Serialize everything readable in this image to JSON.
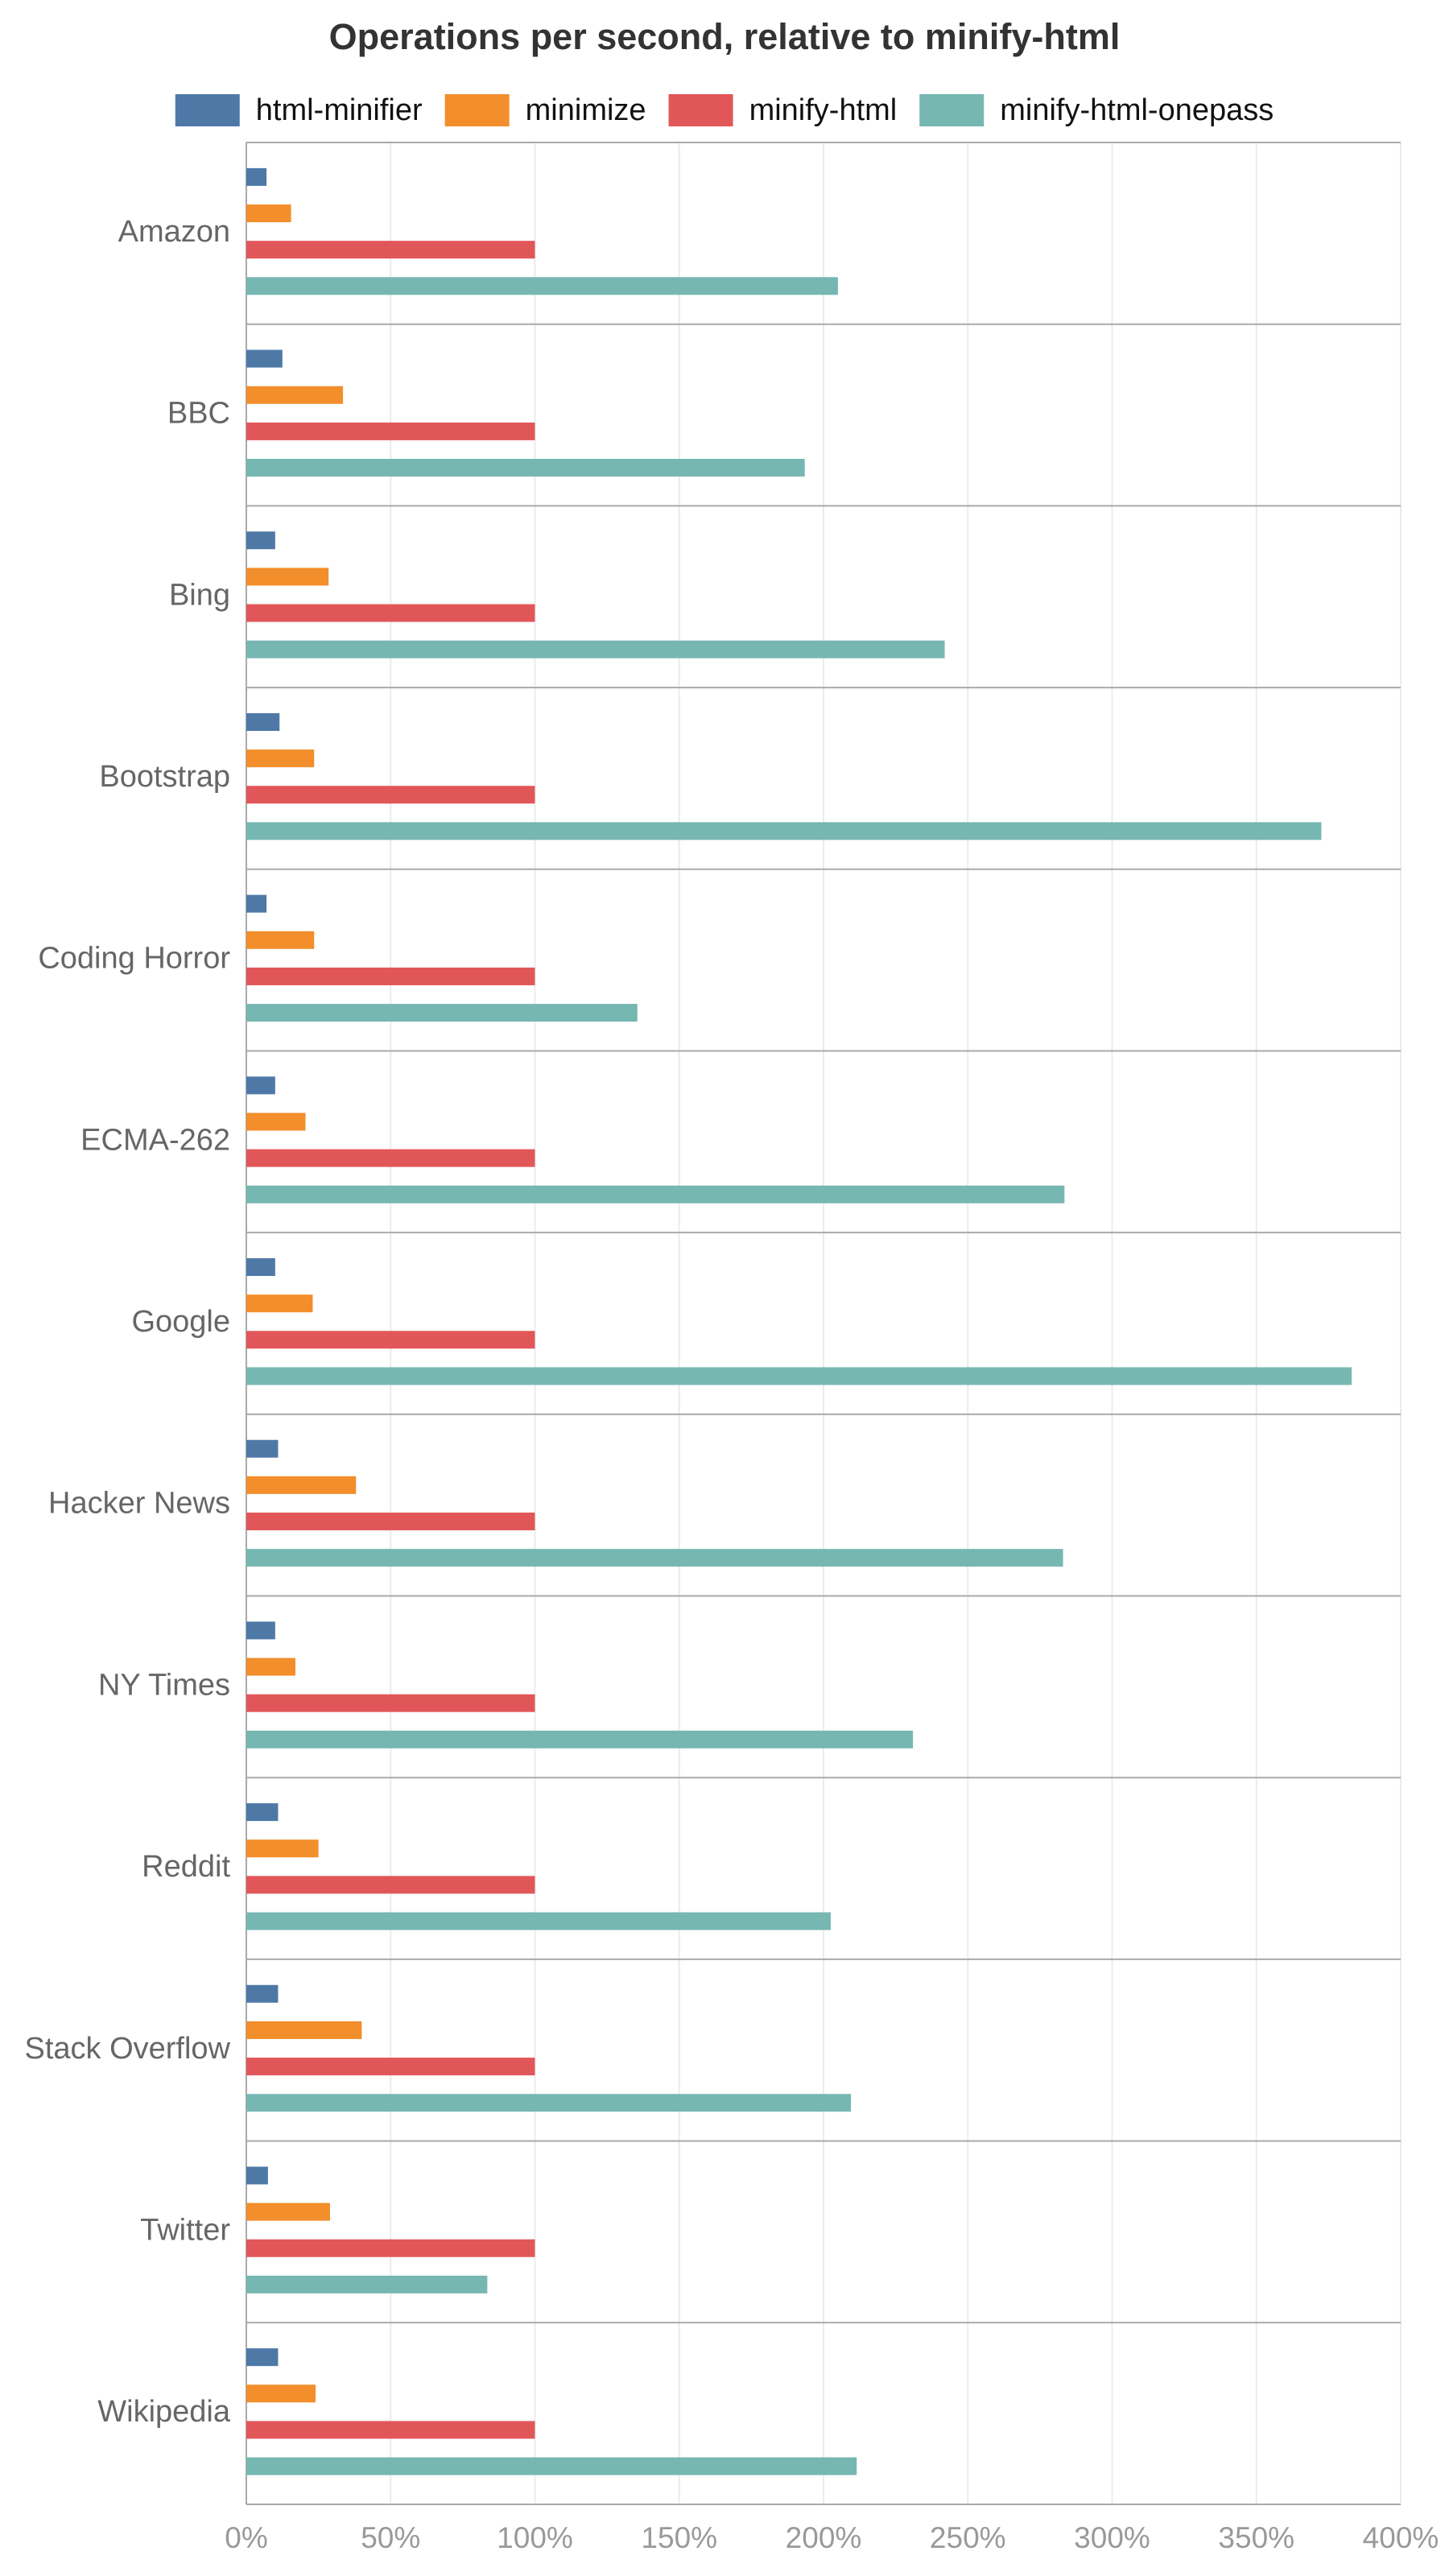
{
  "chart_data": {
    "type": "bar",
    "orientation": "horizontal",
    "title": "Operations per second, relative to minify-html",
    "categories": [
      "Amazon",
      "BBC",
      "Bing",
      "Bootstrap",
      "Coding Horror",
      "ECMA-262",
      "Google",
      "Hacker News",
      "NY Times",
      "Reddit",
      "Stack Overflow",
      "Twitter",
      "Wikipedia"
    ],
    "series": [
      {
        "name": "html-minifier",
        "color": "#4e79a7",
        "values": [
          7,
          12.5,
          10,
          11.5,
          7,
          10,
          10,
          11,
          10,
          11,
          11,
          7.5,
          11
        ]
      },
      {
        "name": "minimize",
        "color": "#f28e2b",
        "values": [
          15.5,
          33.5,
          28.5,
          23.5,
          23.5,
          20.5,
          23,
          38,
          17,
          25,
          40,
          29,
          24
        ]
      },
      {
        "name": "minify-html",
        "color": "#e15759",
        "values": [
          100,
          100,
          100,
          100,
          100,
          100,
          100,
          100,
          100,
          100,
          100,
          100,
          100
        ]
      },
      {
        "name": "minify-html-onepass",
        "color": "#76b7b2",
        "values": [
          205,
          193.5,
          242,
          372.5,
          135.5,
          283.5,
          383,
          283,
          231,
          202.5,
          209.5,
          83.5,
          211.5
        ]
      }
    ],
    "xlim": [
      0,
      400
    ],
    "xticks": [
      {
        "value": 0,
        "label": "0%"
      },
      {
        "value": 50,
        "label": "50%"
      },
      {
        "value": 100,
        "label": "100%"
      },
      {
        "value": 150,
        "label": "150%"
      },
      {
        "value": 200,
        "label": "200%"
      },
      {
        "value": 250,
        "label": "250%"
      },
      {
        "value": 300,
        "label": "300%"
      },
      {
        "value": 350,
        "label": "350%"
      },
      {
        "value": 400,
        "label": "400%"
      }
    ],
    "grid": true,
    "legend": "top"
  }
}
